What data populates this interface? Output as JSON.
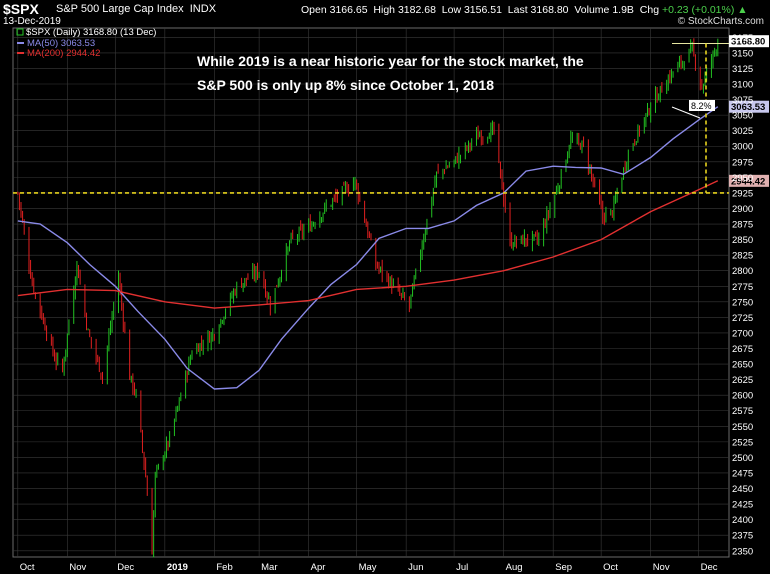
{
  "header": {
    "symbol": "$SPX",
    "name": "S&P 500 Large Cap Index",
    "exchange": "INDX",
    "date": "13-Dec-2019",
    "open_label": "Open",
    "open": "3166.65",
    "high_label": "High",
    "high": "3182.68",
    "low_label": "Low",
    "low": "3156.51",
    "last_label": "Last",
    "last": "3168.80",
    "volume_label": "Volume",
    "volume": "1.9B",
    "chg_label": "Chg",
    "chg": "+0.23 (+0.01%)",
    "brand": "© StockCharts.com"
  },
  "legend": {
    "price": "$SPX (Daily) 3168.80 (13 Dec)",
    "ma50": "MA(50) 3063.53",
    "ma200": "MA(200) 2944.42"
  },
  "annotation": {
    "line1": "While 2019 is a near historic year for the stock market, the",
    "line2": "S&P 500 is only up 8% since October 1, 2018",
    "pct": "8.2%"
  },
  "colors": {
    "background": "#000000",
    "grid": "#3a3a3a",
    "up_candle": "#22c222",
    "down_candle": "#e02020",
    "ma50": "#8a8ae8",
    "ma200": "#e23030",
    "dashed_line": "#e6d21e",
    "last_price_box": "#ffffff"
  },
  "chart_data": {
    "type": "line",
    "title": "$SPX (Daily)",
    "y_ticks": [
      2350,
      2375,
      2400,
      2425,
      2450,
      2475,
      2500,
      2525,
      2550,
      2575,
      2600,
      2625,
      2650,
      2675,
      2700,
      2725,
      2750,
      2775,
      2800,
      2825,
      2850,
      2875,
      2900,
      2925,
      2950,
      2975,
      3000,
      3025,
      3050,
      3075,
      3100,
      3125,
      3150,
      3175
    ],
    "ylim": [
      2340,
      3190
    ],
    "x_labels": [
      "Oct",
      "Nov",
      "Dec",
      "2019",
      "Feb",
      "Mar",
      "Apr",
      "May",
      "Jun",
      "Jul",
      "Aug",
      "Sep",
      "Oct",
      "Nov",
      "Dec"
    ],
    "x_label_dates": [
      "2018-10-01",
      "2018-11-01",
      "2018-12-01",
      "2019-01-01",
      "2019-02-01",
      "2019-03-01",
      "2019-04-01",
      "2019-05-01",
      "2019-06-01",
      "2019-07-01",
      "2019-08-01",
      "2019-09-01",
      "2019-10-01",
      "2019-11-01",
      "2019-12-01"
    ],
    "xlim": [
      "2018-09-28",
      "2019-12-20"
    ],
    "price_labels": {
      "last": "3168.80",
      "ma50": "3063.53",
      "ma200": "2944.42"
    },
    "reference_level": 2925,
    "high_reference": 3165,
    "series": [
      {
        "name": "$SPX (Daily)",
        "x": [
          "2018-10-01",
          "2018-10-10",
          "2018-10-24",
          "2018-10-29",
          "2018-11-07",
          "2018-11-14",
          "2018-11-23",
          "2018-12-03",
          "2018-12-10",
          "2018-12-14",
          "2018-12-20",
          "2018-12-24",
          "2018-12-26",
          "2019-01-04",
          "2019-01-18",
          "2019-02-01",
          "2019-02-15",
          "2019-03-01",
          "2019-03-08",
          "2019-03-21",
          "2019-04-01",
          "2019-04-15",
          "2019-04-30",
          "2019-05-13",
          "2019-05-31",
          "2019-06-03",
          "2019-06-20",
          "2019-07-01",
          "2019-07-15",
          "2019-07-26",
          "2019-08-05",
          "2019-08-15",
          "2019-08-23",
          "2019-09-04",
          "2019-09-12",
          "2019-09-20",
          "2019-10-02",
          "2019-10-08",
          "2019-10-18",
          "2019-11-01",
          "2019-11-15",
          "2019-11-27",
          "2019-12-03",
          "2019-12-13"
        ],
        "values": [
          2925,
          2780,
          2660,
          2640,
          2810,
          2700,
          2630,
          2790,
          2630,
          2600,
          2470,
          2351,
          2470,
          2530,
          2670,
          2700,
          2775,
          2800,
          2745,
          2850,
          2870,
          2910,
          2945,
          2810,
          2752,
          2745,
          2955,
          2975,
          3015,
          3025,
          2845,
          2850,
          2850,
          2935,
          3010,
          3000,
          2887,
          2895,
          2990,
          3065,
          3120,
          3155,
          3095,
          3168.8
        ]
      },
      {
        "name": "MA(50)",
        "x": [
          "2018-10-01",
          "2018-10-15",
          "2018-11-01",
          "2018-11-15",
          "2018-12-01",
          "2018-12-15",
          "2019-01-01",
          "2019-01-15",
          "2019-02-01",
          "2019-02-15",
          "2019-03-01",
          "2019-03-15",
          "2019-04-01",
          "2019-04-15",
          "2019-05-01",
          "2019-05-15",
          "2019-06-01",
          "2019-06-15",
          "2019-07-01",
          "2019-07-15",
          "2019-08-01",
          "2019-08-15",
          "2019-09-01",
          "2019-09-15",
          "2019-10-01",
          "2019-10-15",
          "2019-11-01",
          "2019-11-15",
          "2019-12-01",
          "2019-12-13"
        ],
        "values": [
          2880,
          2875,
          2845,
          2810,
          2775,
          2735,
          2690,
          2643,
          2610,
          2612,
          2640,
          2690,
          2740,
          2778,
          2810,
          2852,
          2868,
          2868,
          2880,
          2905,
          2925,
          2960,
          2968,
          2966,
          2965,
          2955,
          2982,
          3012,
          3042,
          3063.53
        ]
      },
      {
        "name": "MA(200)",
        "x": [
          "2018-10-01",
          "2018-11-01",
          "2018-12-01",
          "2019-01-01",
          "2019-02-01",
          "2019-03-01",
          "2019-04-01",
          "2019-05-01",
          "2019-06-01",
          "2019-07-01",
          "2019-08-01",
          "2019-09-01",
          "2019-10-01",
          "2019-11-01",
          "2019-12-01",
          "2019-12-13"
        ],
        "values": [
          2760,
          2770,
          2768,
          2750,
          2740,
          2745,
          2752,
          2770,
          2775,
          2785,
          2800,
          2822,
          2850,
          2895,
          2930,
          2944.42
        ]
      }
    ]
  }
}
